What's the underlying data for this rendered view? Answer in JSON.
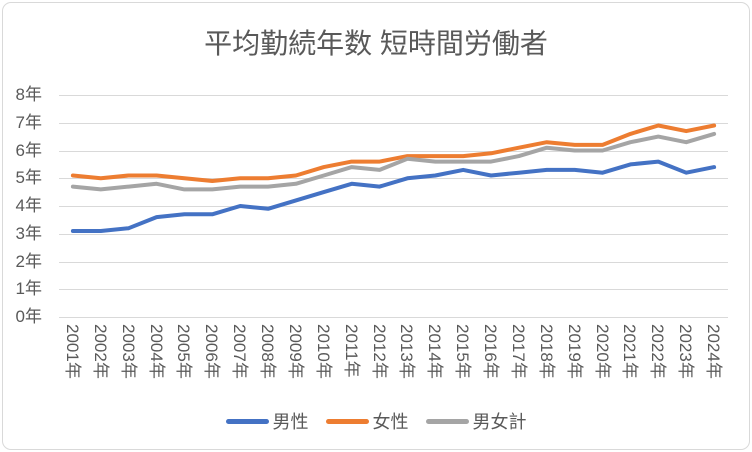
{
  "title": "平均勤続年数 短時間労働者",
  "chart_data": {
    "type": "line",
    "title": "平均勤続年数 短時間労働者",
    "categories": [
      "2001年",
      "2002年",
      "2003年",
      "2004年",
      "2005年",
      "2006年",
      "2007年",
      "2008年",
      "2009年",
      "2010年",
      "2011年",
      "2012年",
      "2013年",
      "2014年",
      "2015年",
      "2016年",
      "2017年",
      "2018年",
      "2019年",
      "2020年",
      "2021年",
      "2022年",
      "2023年",
      "2024年"
    ],
    "series": [
      {
        "name": "男性",
        "color": "#4472C4",
        "values": [
          3.1,
          3.1,
          3.2,
          3.6,
          3.7,
          3.7,
          4.0,
          3.9,
          4.2,
          4.5,
          4.8,
          4.7,
          5.0,
          5.1,
          5.3,
          5.1,
          5.2,
          5.3,
          5.3,
          5.2,
          5.5,
          5.6,
          5.2,
          5.4
        ]
      },
      {
        "name": "女性",
        "color": "#ED7D31",
        "values": [
          5.1,
          5.0,
          5.1,
          5.1,
          5.0,
          4.9,
          5.0,
          5.0,
          5.1,
          5.4,
          5.6,
          5.6,
          5.8,
          5.8,
          5.8,
          5.9,
          6.1,
          6.3,
          6.2,
          6.2,
          6.6,
          6.9,
          6.7,
          6.9
        ]
      },
      {
        "name": "男女計",
        "color": "#A5A5A5",
        "values": [
          4.7,
          4.6,
          4.7,
          4.8,
          4.6,
          4.6,
          4.7,
          4.7,
          4.8,
          5.1,
          5.4,
          5.3,
          5.7,
          5.6,
          5.6,
          5.6,
          5.8,
          6.1,
          6.0,
          6.0,
          6.3,
          6.5,
          6.3,
          6.6
        ]
      }
    ],
    "yticks": [
      "8年",
      "7年",
      "6年",
      "5年",
      "4年",
      "3年",
      "2年",
      "1年",
      "0年"
    ],
    "ylim": [
      0,
      8
    ],
    "grid": true,
    "legend_position": "bottom",
    "gridline_color": "#D9D9D9",
    "text_color": "#595959"
  }
}
